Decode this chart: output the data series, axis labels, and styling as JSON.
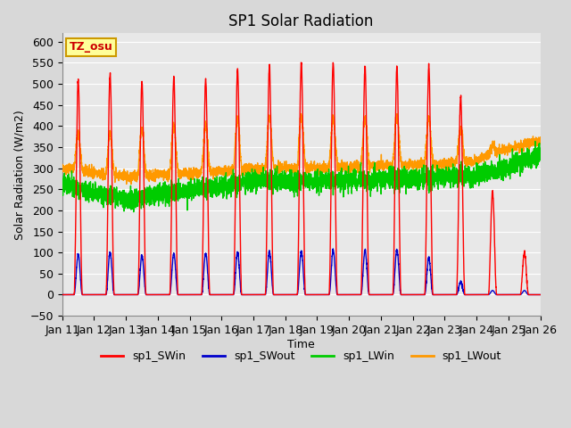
{
  "title": "SP1 Solar Radiation",
  "xlabel": "Time",
  "ylabel": "Solar Radiation (W/m2)",
  "ylim": [
    -50,
    620
  ],
  "yticks": [
    -50,
    0,
    50,
    100,
    150,
    200,
    250,
    300,
    350,
    400,
    450,
    500,
    550,
    600
  ],
  "bg_color": "#d8d8d8",
  "plot_bg_light": "#e8e8e8",
  "plot_bg_dark": "#d0d0d0",
  "grid_color": "#ffffff",
  "colors": {
    "sp1_SWin": "#ff0000",
    "sp1_SWout": "#0000cc",
    "sp1_LWin": "#00cc00",
    "sp1_LWout": "#ff9900"
  },
  "tz_label": "TZ_osu",
  "n_days": 15,
  "start_day": 11,
  "sw_in_peaks": [
    510,
    525,
    505,
    515,
    510,
    535,
    545,
    550,
    552,
    540,
    540,
    542,
    470,
    245,
    100
  ],
  "sw_out_peaks": [
    95,
    100,
    92,
    98,
    98,
    100,
    103,
    103,
    105,
    105,
    107,
    87,
    30,
    10,
    10
  ],
  "lw_in_base": [
    262,
    240,
    225,
    242,
    250,
    262,
    272,
    270,
    272,
    273,
    275,
    278,
    282,
    300,
    335
  ],
  "lw_out_base": [
    300,
    287,
    280,
    285,
    288,
    295,
    300,
    300,
    302,
    305,
    307,
    310,
    315,
    345,
    365
  ],
  "lw_out_peak_add": [
    90,
    100,
    110,
    115,
    110,
    120,
    120,
    120,
    115,
    115,
    115,
    110,
    80,
    20,
    0
  ],
  "pts_per_day": 288,
  "title_fontsize": 12,
  "axis_fontsize": 9,
  "tick_fontsize": 9,
  "line_width": 1.0
}
